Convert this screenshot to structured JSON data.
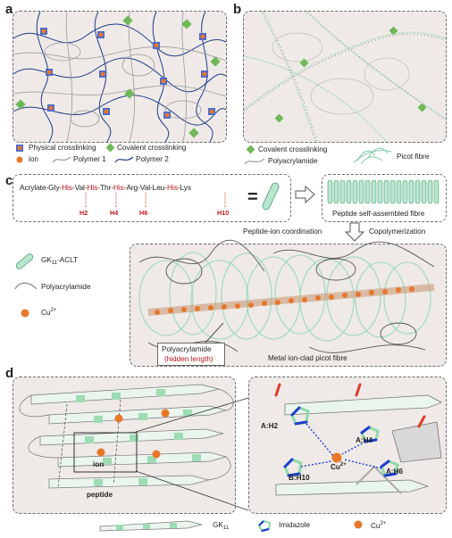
{
  "panels": {
    "a": "a",
    "b": "b",
    "c": "c",
    "d": "d"
  },
  "legend_a": {
    "physical": "Physical crosslinking",
    "covalent": "Covalent crosslinking",
    "ion": "ion",
    "polymer1": "Polymer 1",
    "polymer2": "Polymer 2"
  },
  "legend_b": {
    "covalent": "Covalent crosslinking",
    "polyacrylamide": "Polyacrylamide",
    "picot": "Picot fibre"
  },
  "sequence": {
    "parts": [
      "Acrylate-Gly-",
      "His",
      "-Val-",
      "His",
      "-Thr-",
      "His",
      "-Arg-Val-Leu-",
      "His",
      "-Lys"
    ],
    "labels": [
      "H2",
      "H4",
      "H6",
      "H10"
    ]
  },
  "fibre_label": "Peptide self-assembled fibre",
  "process": {
    "left": "Peptide-ion coordination",
    "right": "Copolymerization"
  },
  "legend_c": {
    "gk_main": "GK",
    "gk_sub": "11",
    "gk_suffix": "-ACLT",
    "polyacrylamide": "Polyacrylamide",
    "cu_main": "Cu",
    "cu_sup": "2+"
  },
  "callout": {
    "line1": "Polyacrylamide",
    "line2": "(hidden length)"
  },
  "metal_fibre_label": "Metal ion-clad picot fibre",
  "panel_d": {
    "ion": "ion",
    "peptide": "peptide",
    "gk_main": "GK",
    "gk_sub": "11",
    "residues": [
      "A:H2",
      "A:H4",
      "A:H6",
      "B:H10"
    ],
    "cu_main": "Cu",
    "cu_sup": "2+",
    "imidazole": "Imidazole",
    "cu_legend_main": "Cu",
    "cu_legend_sup": "2+"
  },
  "colors": {
    "mint": "#b9e6cf",
    "teal": "#7fcaa9",
    "green": "#5aa84a",
    "blue": "#1f3b8c",
    "red": "#c2141c",
    "orange": "#e8772a",
    "box_bg": "#efeae7"
  }
}
